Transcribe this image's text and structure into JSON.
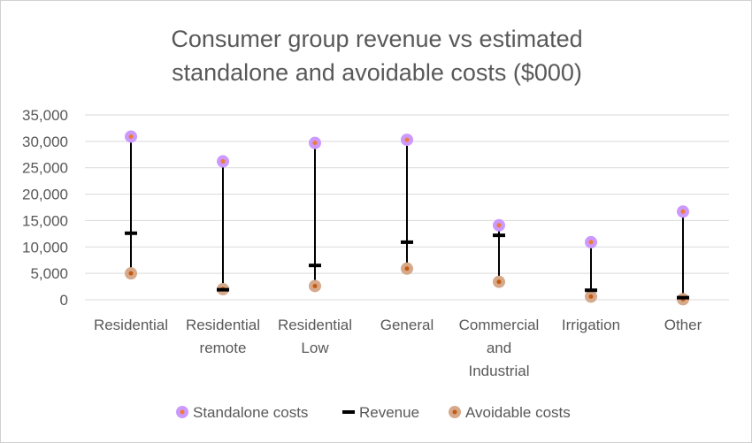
{
  "chart_data": {
    "type": "scatter",
    "title_lines": [
      "Consumer group revenue vs estimated",
      "standalone and avoidable costs ($000)"
    ],
    "categories": [
      [
        "Residential"
      ],
      [
        "Residential",
        "remote"
      ],
      [
        "Residential",
        "Low"
      ],
      [
        "General"
      ],
      [
        "Commercial",
        "and",
        "Industrial"
      ],
      [
        "Irrigation"
      ],
      [
        "Other"
      ]
    ],
    "series": [
      {
        "name": "Standalone costs",
        "color": "#cc99ff",
        "dot_color": "#ed7d31",
        "marker": "circle",
        "values": [
          30900,
          26200,
          29700,
          30300,
          14100,
          10900,
          16700
        ]
      },
      {
        "name": "Revenue",
        "color": "#000000",
        "marker": "dash",
        "values": [
          12600,
          1900,
          6500,
          10900,
          12200,
          1800,
          400
        ]
      },
      {
        "name": "Avoidable costs",
        "color": "#d6a98a",
        "dot_color": "#c55a11",
        "marker": "circle",
        "values": [
          5000,
          2000,
          2600,
          5900,
          3400,
          600,
          100
        ]
      }
    ],
    "ylim": [
      0,
      35000
    ],
    "yticks": [
      0,
      5000,
      10000,
      15000,
      20000,
      25000,
      30000,
      35000
    ],
    "ytick_labels": [
      "0",
      "5,000",
      "10,000",
      "15,000",
      "20,000",
      "25,000",
      "30,000",
      "35,000"
    ],
    "grid": true,
    "legend_position": "bottom"
  }
}
